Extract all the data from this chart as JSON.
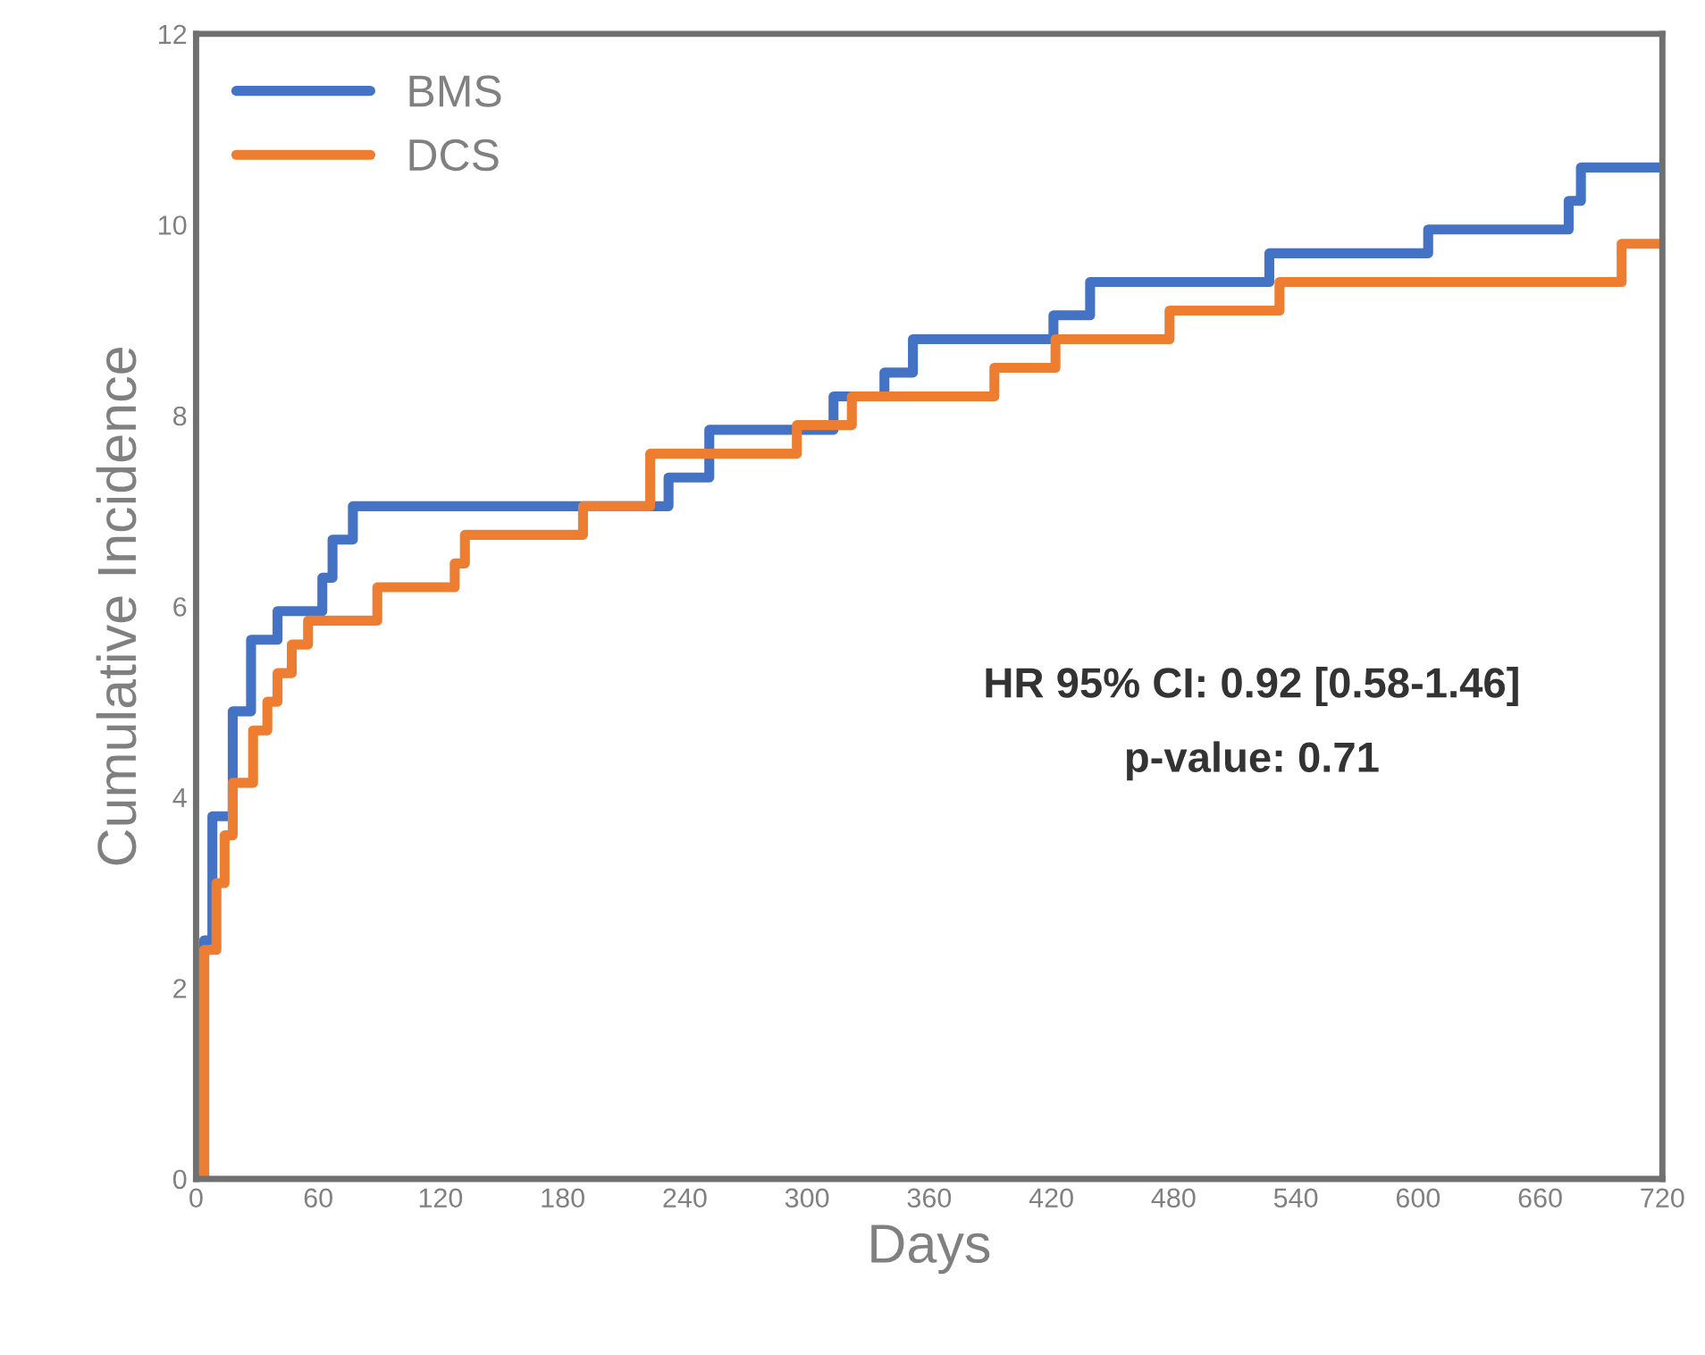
{
  "chart_data": {
    "type": "step",
    "xlabel": "Days",
    "ylabel": "Cumulative Incidence",
    "xlim": [
      0,
      720
    ],
    "xticks": [
      0,
      60,
      120,
      180,
      240,
      300,
      360,
      420,
      480,
      540,
      600,
      660,
      720
    ],
    "ylim": [
      0,
      12
    ],
    "yticks": [
      0,
      2,
      4,
      6,
      8,
      10,
      12
    ],
    "grid": false,
    "legend": "top left",
    "marker": "none",
    "line_style": "solid",
    "annotations": [
      "HR 95% CI: 0.92 [0.58-1.46]",
      "p-value: 0.71"
    ],
    "series": [
      {
        "name": "BMS",
        "color": "#4472c4",
        "x": [
          0,
          4,
          8,
          18,
          27,
          40,
          62,
          67,
          77,
          232,
          252,
          313,
          338,
          352,
          421,
          439,
          527,
          605,
          674,
          680,
          720
        ],
        "values": [
          0,
          2.5,
          3.8,
          4.9,
          5.65,
          5.95,
          6.3,
          6.7,
          7.05,
          7.35,
          7.85,
          8.2,
          8.45,
          8.8,
          9.05,
          9.4,
          9.7,
          9.95,
          10.25,
          10.6,
          10.6
        ]
      },
      {
        "name": "DCS",
        "color": "#ed7d31",
        "x": [
          0,
          4,
          10,
          14,
          18,
          28,
          35,
          40,
          47,
          55,
          89,
          127,
          132,
          190,
          223,
          295,
          322,
          392,
          422,
          478,
          532,
          700,
          720
        ],
        "values": [
          0,
          2.4,
          3.1,
          3.6,
          4.15,
          4.7,
          5.0,
          5.3,
          5.6,
          5.85,
          6.2,
          6.45,
          6.75,
          7.05,
          7.6,
          7.9,
          8.2,
          8.5,
          8.8,
          9.1,
          9.4,
          9.8,
          9.8
        ]
      }
    ]
  }
}
